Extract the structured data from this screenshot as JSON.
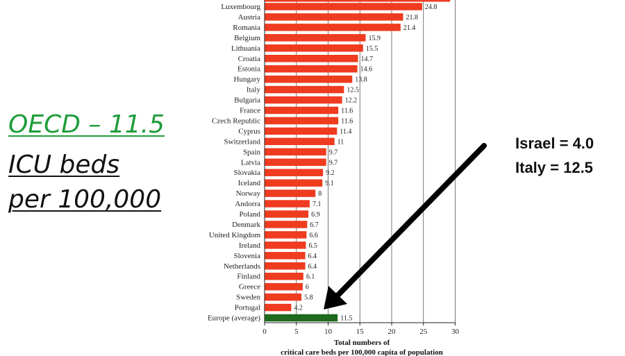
{
  "side_text": {
    "line1": "OECD – 11.5",
    "line2": "ICU beds",
    "line3": "per 100,000"
  },
  "annotation": {
    "line1": "Israel = 4.0",
    "line2": "Italy = 12.5"
  },
  "colors": {
    "bar": "#ef3b1f",
    "average_bar": "#1e6b1e",
    "accent_text": "#1f9d3a",
    "arrow": "#000000"
  },
  "chart_data": {
    "type": "bar",
    "orientation": "horizontal",
    "categories": [
      "Luxembourg",
      "Austria",
      "Romania",
      "Belgium",
      "Lithuania",
      "Croatia",
      "Estonia",
      "Hungary",
      "Italy",
      "Bulgaria",
      "France",
      "Czech Republic",
      "Cyprus",
      "Switzerland",
      "Spain",
      "Latvia",
      "Slovakia",
      "Iceland",
      "Norway",
      "Andorra",
      "Poland",
      "Denmark",
      "United Kingdom",
      "Ireland",
      "Slovenia",
      "Netherlands",
      "Finland",
      "Greece",
      "Sweden",
      "Portugal",
      "Europe (average)"
    ],
    "values": [
      24.8,
      21.8,
      21.4,
      15.9,
      15.5,
      14.7,
      14.6,
      13.8,
      12.5,
      12.2,
      11.6,
      11.6,
      11.4,
      11,
      9.7,
      9.7,
      9.2,
      9.1,
      8,
      7.1,
      6.9,
      6.7,
      6.6,
      6.5,
      6.4,
      6.4,
      6.1,
      6,
      5.8,
      4.2,
      11.5
    ],
    "value_labels": [
      "24.8",
      "21.8",
      "21.4",
      "15.9",
      "15.5",
      "14.7",
      "14.6",
      "13.8",
      "12.5",
      "12.2",
      "11.6",
      "11.6",
      "11.4",
      "11",
      "9.7",
      "9.7",
      "9.2",
      "9.1",
      "8",
      "7.1",
      "6.9",
      "6.7",
      "6.6",
      "6.5",
      "6.4",
      "6.4",
      "6.1",
      "6",
      "5.8",
      "4.2",
      "11.5"
    ],
    "highlight_category": "Europe (average)",
    "xlabel": "Total numbers of critical care beds per 100,000 capita of population",
    "xlim": [
      0,
      30
    ],
    "xticks": [
      0,
      5,
      10,
      15,
      20,
      25,
      30
    ],
    "grid": "vertical",
    "legend": "none"
  }
}
